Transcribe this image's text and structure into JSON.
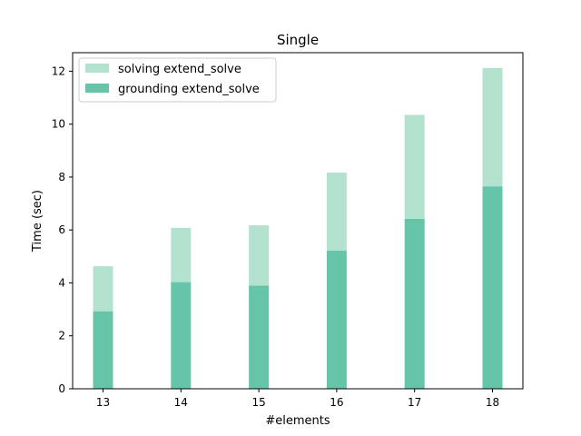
{
  "chart_data": {
    "type": "bar",
    "stacked": true,
    "title": "Single",
    "xlabel": "#elements",
    "ylabel": "Time (sec)",
    "categories": [
      "13",
      "14",
      "15",
      "16",
      "17",
      "18"
    ],
    "ylim": [
      0,
      12.7
    ],
    "yticks": [
      0,
      2,
      4,
      6,
      8,
      10,
      12
    ],
    "grid": false,
    "legend_position": "top-left",
    "series": [
      {
        "name": "grounding extend_solve",
        "values": [
          2.93,
          4.03,
          3.9,
          5.22,
          6.42,
          7.65
        ],
        "color": "#66c5a8"
      },
      {
        "name": "solving extend_solve",
        "values": [
          1.7,
          2.05,
          2.28,
          2.95,
          3.93,
          4.47
        ],
        "color": "#b3e3cf"
      }
    ]
  }
}
